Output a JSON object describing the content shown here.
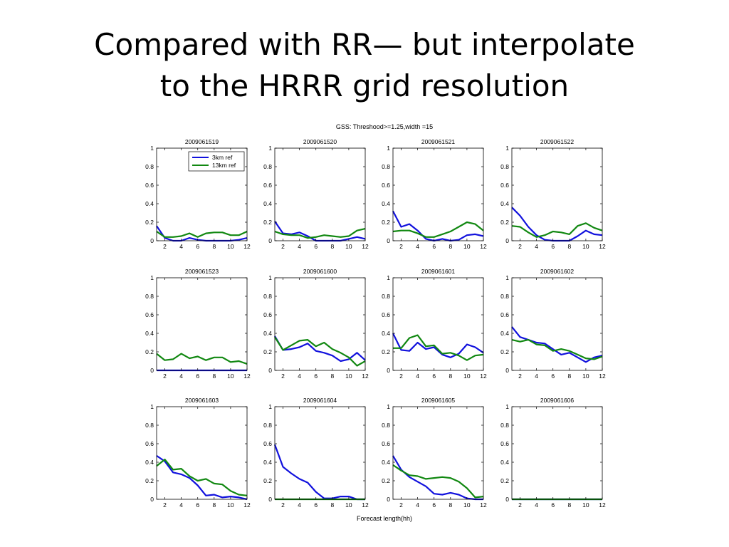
{
  "slide": {
    "title_line1": "Compared with RR— but interpolate",
    "title_line2": "to the HRRR grid resolution"
  },
  "figure": {
    "suptitle": "GSS: Threshood>=1.25,width =15",
    "xlabel": "Forecast length(hh)"
  },
  "colors": {
    "series_3km": "#1111dd",
    "series_13km": "#118811",
    "axis": "#000000"
  },
  "chart_data": {
    "type": "line",
    "x": [
      1,
      2,
      3,
      4,
      5,
      6,
      7,
      8,
      9,
      10,
      11,
      12
    ],
    "xlim": [
      1,
      12
    ],
    "ylim": [
      0,
      1
    ],
    "xticks": [
      2,
      4,
      6,
      8,
      10,
      12
    ],
    "yticks": [
      0,
      0.2,
      0.4,
      0.6,
      0.8,
      1
    ],
    "ytick_labels": [
      "0",
      "0.2",
      "0.4",
      "0.6",
      "0.8",
      "1"
    ],
    "legend": {
      "entries": [
        "3km ref",
        "13km ref"
      ],
      "position": "top-right",
      "panel": 0
    },
    "panels": [
      {
        "title": "2009061519",
        "series": [
          {
            "name": "3km ref",
            "values": [
              0.16,
              0.03,
              0.0,
              0.0,
              0.03,
              0.01,
              0.0,
              0.0,
              0.0,
              0.0,
              0.01,
              0.03
            ]
          },
          {
            "name": "13km ref",
            "values": [
              0.1,
              0.04,
              0.04,
              0.05,
              0.08,
              0.04,
              0.08,
              0.09,
              0.09,
              0.06,
              0.06,
              0.1
            ]
          }
        ]
      },
      {
        "title": "2009061520",
        "series": [
          {
            "name": "3km ref",
            "values": [
              0.21,
              0.08,
              0.07,
              0.09,
              0.05,
              0.0,
              0.0,
              0.0,
              0.0,
              0.02,
              0.04,
              0.02
            ]
          },
          {
            "name": "13km ref",
            "values": [
              0.1,
              0.07,
              0.06,
              0.06,
              0.03,
              0.04,
              0.06,
              0.05,
              0.04,
              0.05,
              0.11,
              0.13
            ]
          }
        ]
      },
      {
        "title": "2009061521",
        "series": [
          {
            "name": "3km ref",
            "values": [
              0.32,
              0.15,
              0.18,
              0.11,
              0.02,
              0.0,
              0.02,
              0.0,
              0.01,
              0.06,
              0.07,
              0.05
            ]
          },
          {
            "name": "13km ref",
            "values": [
              0.1,
              0.11,
              0.11,
              0.08,
              0.04,
              0.04,
              0.07,
              0.1,
              0.15,
              0.2,
              0.18,
              0.11
            ]
          }
        ]
      },
      {
        "title": "2009061522",
        "series": [
          {
            "name": "3km ref",
            "values": [
              0.36,
              0.27,
              0.15,
              0.06,
              0.01,
              0.0,
              0.0,
              0.0,
              0.05,
              0.11,
              0.07,
              0.06
            ]
          },
          {
            "name": "13km ref",
            "values": [
              0.16,
              0.15,
              0.09,
              0.04,
              0.06,
              0.1,
              0.09,
              0.07,
              0.16,
              0.19,
              0.14,
              0.11
            ]
          }
        ]
      },
      {
        "title": "2009061523",
        "series": [
          {
            "name": "3km ref",
            "values": [
              0.0,
              0.0,
              0.0,
              0.0,
              0.0,
              0.0,
              0.0,
              0.0,
              0.0,
              0.0,
              0.0,
              0.0
            ]
          },
          {
            "name": "13km ref",
            "values": [
              0.18,
              0.11,
              0.12,
              0.18,
              0.13,
              0.15,
              0.11,
              0.14,
              0.14,
              0.09,
              0.1,
              0.07
            ]
          }
        ]
      },
      {
        "title": "2009061600",
        "series": [
          {
            "name": "3km ref",
            "values": [
              0.37,
              0.22,
              0.23,
              0.25,
              0.29,
              0.21,
              0.19,
              0.16,
              0.1,
              0.12,
              0.19,
              0.11
            ]
          },
          {
            "name": "13km ref",
            "values": [
              0.36,
              0.22,
              0.27,
              0.32,
              0.33,
              0.26,
              0.3,
              0.23,
              0.19,
              0.14,
              0.05,
              0.1
            ]
          }
        ]
      },
      {
        "title": "2009061601",
        "series": [
          {
            "name": "3km ref",
            "values": [
              0.4,
              0.22,
              0.21,
              0.3,
              0.23,
              0.25,
              0.17,
              0.14,
              0.18,
              0.28,
              0.25,
              0.19
            ]
          },
          {
            "name": "13km ref",
            "values": [
              0.24,
              0.24,
              0.35,
              0.38,
              0.26,
              0.27,
              0.18,
              0.19,
              0.16,
              0.11,
              0.16,
              0.17
            ]
          }
        ]
      },
      {
        "title": "2009061602",
        "series": [
          {
            "name": "3km ref",
            "values": [
              0.47,
              0.36,
              0.33,
              0.3,
              0.29,
              0.23,
              0.17,
              0.19,
              0.14,
              0.09,
              0.14,
              0.16
            ]
          },
          {
            "name": "13km ref",
            "values": [
              0.33,
              0.31,
              0.33,
              0.28,
              0.27,
              0.21,
              0.23,
              0.21,
              0.17,
              0.13,
              0.12,
              0.15
            ]
          }
        ]
      },
      {
        "title": "2009061603",
        "series": [
          {
            "name": "3km ref",
            "values": [
              0.47,
              0.41,
              0.29,
              0.27,
              0.23,
              0.15,
              0.04,
              0.05,
              0.02,
              0.03,
              0.02,
              0.0
            ]
          },
          {
            "name": "13km ref",
            "values": [
              0.36,
              0.43,
              0.32,
              0.33,
              0.25,
              0.2,
              0.22,
              0.17,
              0.16,
              0.09,
              0.05,
              0.04
            ]
          }
        ]
      },
      {
        "title": "2009061604",
        "series": [
          {
            "name": "3km ref",
            "values": [
              0.59,
              0.35,
              0.28,
              0.22,
              0.18,
              0.08,
              0.01,
              0.01,
              0.03,
              0.03,
              0.0,
              0.0
            ]
          },
          {
            "name": "13km ref",
            "values": [
              0.0,
              0.0,
              0.0,
              0.0,
              0.0,
              0.0,
              0.0,
              0.0,
              0.0,
              0.0,
              0.0,
              0.0
            ]
          }
        ]
      },
      {
        "title": "2009061605",
        "series": [
          {
            "name": "3km ref",
            "values": [
              0.47,
              0.32,
              0.24,
              0.19,
              0.14,
              0.06,
              0.05,
              0.07,
              0.05,
              0.01,
              0.0,
              0.0
            ]
          },
          {
            "name": "13km ref",
            "values": [
              0.37,
              0.31,
              0.26,
              0.25,
              0.22,
              0.23,
              0.24,
              0.23,
              0.19,
              0.12,
              0.02,
              0.03
            ]
          }
        ]
      },
      {
        "title": "2009061606",
        "series": [
          {
            "name": "3km ref",
            "values": [
              0.0,
              0.0,
              0.0,
              0.0,
              0.0,
              0.0,
              0.0,
              0.0,
              0.0,
              0.0,
              0.0,
              0.0
            ]
          },
          {
            "name": "13km ref",
            "values": [
              0.0,
              0.0,
              0.0,
              0.0,
              0.0,
              0.0,
              0.0,
              0.0,
              0.0,
              0.0,
              0.0,
              0.0
            ]
          }
        ]
      }
    ]
  }
}
